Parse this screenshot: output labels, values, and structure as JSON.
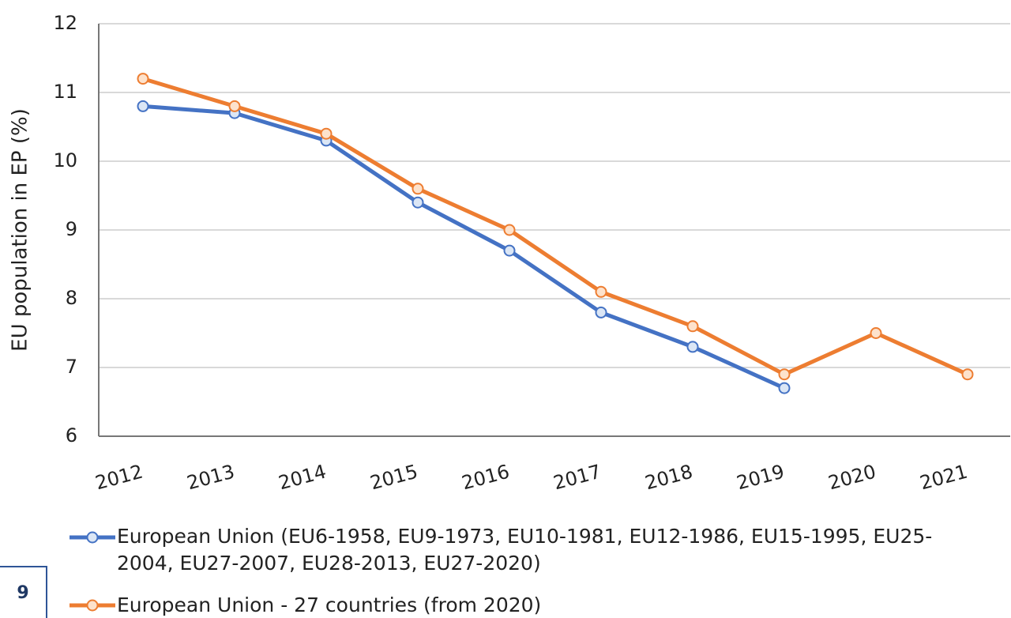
{
  "chart_data": {
    "type": "line",
    "y_label": "EU population in EP (%)",
    "categories": [
      "2012",
      "2013",
      "2014",
      "2015",
      "2016",
      "2017",
      "2018",
      "2019",
      "2020",
      "2021"
    ],
    "series": [
      {
        "name": "European Union (EU6-1958, EU9-1973, EU10-1981, EU12-1986, EU15-1995, EU25-2004, EU27-2007, EU28-2013, EU27-2020)",
        "color": "#4472c4",
        "marker_fill": "#dbe6f5",
        "values": [
          10.8,
          10.7,
          10.3,
          9.4,
          8.7,
          7.8,
          7.3,
          6.7,
          null,
          null
        ]
      },
      {
        "name": "European Union - 27 countries (from 2020)",
        "color": "#ed7d31",
        "marker_fill": "#fde2cc",
        "values": [
          11.2,
          10.8,
          10.4,
          9.6,
          9.0,
          8.1,
          7.6,
          6.9,
          7.5,
          6.9
        ]
      }
    ],
    "ylim": [
      6,
      12
    ],
    "yticks": [
      6,
      7,
      8,
      9,
      10,
      11,
      12
    ],
    "grid": true
  },
  "page_number": "9"
}
